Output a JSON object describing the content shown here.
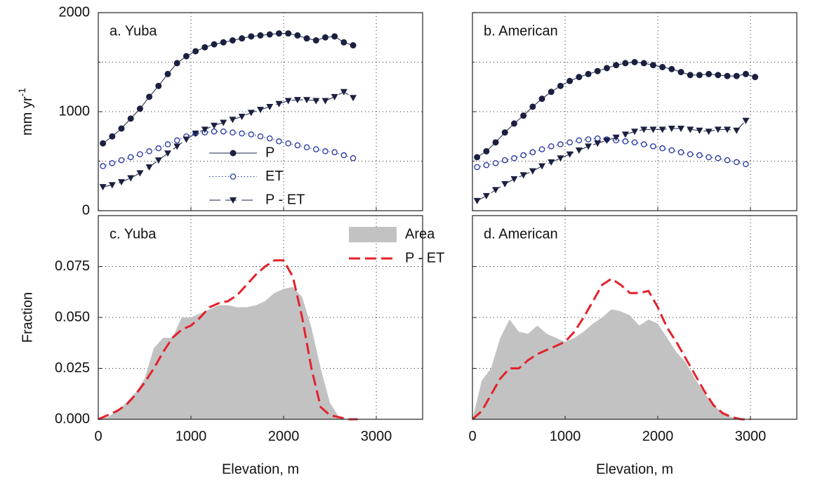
{
  "chart_data": [
    {
      "type": "line",
      "title": "a. Yuba",
      "ylabel": {
        "text": "mm yr",
        "superscript": "-1"
      },
      "x": [
        50,
        150,
        250,
        350,
        450,
        550,
        650,
        750,
        850,
        950,
        1050,
        1150,
        1250,
        1350,
        1450,
        1550,
        1650,
        1750,
        1850,
        1950,
        2050,
        2150,
        2250,
        2350,
        2450,
        2550,
        2650,
        2750
      ],
      "series": [
        {
          "name": "P",
          "color": "#1b2040",
          "dash": "solid",
          "marker": "filled-circle",
          "values": [
            680,
            750,
            830,
            930,
            1030,
            1150,
            1260,
            1380,
            1490,
            1560,
            1610,
            1650,
            1680,
            1700,
            1720,
            1740,
            1760,
            1770,
            1780,
            1790,
            1790,
            1770,
            1740,
            1720,
            1750,
            1760,
            1700,
            1670
          ]
        },
        {
          "name": "ET",
          "color": "#2233a0",
          "dash": "dotted",
          "marker": "open-circle",
          "values": [
            450,
            480,
            510,
            540,
            570,
            600,
            630,
            670,
            710,
            750,
            780,
            790,
            800,
            800,
            790,
            780,
            770,
            750,
            730,
            700,
            680,
            660,
            640,
            620,
            600,
            590,
            560,
            530
          ]
        },
        {
          "name": "P - ET",
          "color": "#1b2040",
          "dash": "dashed",
          "marker": "triangle-down",
          "values": [
            240,
            260,
            290,
            330,
            380,
            440,
            510,
            580,
            650,
            720,
            780,
            820,
            860,
            890,
            920,
            950,
            990,
            1020,
            1050,
            1080,
            1110,
            1120,
            1120,
            1110,
            1110,
            1150,
            1200,
            1140
          ]
        }
      ],
      "xlim": [
        0,
        3500
      ],
      "xticks": [
        0,
        1000,
        2000,
        3000
      ],
      "xtick_labels": false,
      "ylim": [
        0,
        2000
      ],
      "yticks": [
        0,
        1000,
        2000
      ],
      "minor_yticks": [
        500,
        1500
      ],
      "ytick_labels": true,
      "grid": true,
      "legend": "center"
    },
    {
      "type": "line",
      "title": "b. American",
      "x": [
        50,
        150,
        250,
        350,
        450,
        550,
        650,
        750,
        850,
        950,
        1050,
        1150,
        1250,
        1350,
        1450,
        1550,
        1650,
        1750,
        1850,
        1950,
        2050,
        2150,
        2250,
        2350,
        2450,
        2550,
        2650,
        2750,
        2850,
        2950,
        3050
      ],
      "series": [
        {
          "name": "P",
          "color": "#1b2040",
          "dash": "solid",
          "marker": "filled-circle",
          "values": [
            540,
            600,
            690,
            790,
            880,
            960,
            1050,
            1130,
            1200,
            1260,
            1310,
            1350,
            1380,
            1410,
            1440,
            1470,
            1490,
            1500,
            1490,
            1470,
            1450,
            1430,
            1400,
            1370,
            1370,
            1380,
            1370,
            1360,
            1360,
            1380,
            1350
          ]
        },
        {
          "name": "ET",
          "color": "#2233a0",
          "dash": "dotted",
          "marker": "open-circle",
          "values": [
            440,
            460,
            480,
            510,
            530,
            560,
            590,
            620,
            650,
            670,
            690,
            710,
            720,
            730,
            720,
            710,
            700,
            690,
            670,
            650,
            630,
            610,
            590,
            570,
            560,
            540,
            530,
            510,
            490,
            470,
            null
          ]
        },
        {
          "name": "P - ET",
          "color": "#1b2040",
          "dash": "dashed",
          "marker": "triangle-down",
          "values": [
            100,
            150,
            210,
            270,
            320,
            360,
            400,
            450,
            490,
            530,
            570,
            610,
            650,
            680,
            710,
            740,
            770,
            800,
            820,
            820,
            820,
            830,
            830,
            820,
            810,
            800,
            820,
            820,
            810,
            910,
            null
          ]
        }
      ],
      "xlim": [
        0,
        3500
      ],
      "xticks": [
        0,
        1000,
        2000,
        3000
      ],
      "xtick_labels": false,
      "ylim": [
        0,
        2000
      ],
      "yticks": [
        0,
        1000,
        2000
      ],
      "minor_yticks": [
        500,
        1500
      ],
      "ytick_labels": false,
      "grid": true
    },
    {
      "type": "line",
      "title": "c. Yuba",
      "xlabel": "Elevation, m",
      "ylabel": "Fraction",
      "x": [
        0,
        100,
        200,
        300,
        400,
        500,
        600,
        700,
        800,
        900,
        1000,
        1100,
        1200,
        1300,
        1400,
        1500,
        1600,
        1700,
        1800,
        1900,
        2000,
        2100,
        2200,
        2300,
        2400,
        2500,
        2600,
        2700,
        2800
      ],
      "series": [
        {
          "name": "Area",
          "color": "#c2c2c2",
          "kind": "area",
          "values": [
            0,
            0.001,
            0.004,
            0.008,
            0.013,
            0.02,
            0.035,
            0.04,
            0.04,
            0.05,
            0.05,
            0.052,
            0.054,
            0.056,
            0.056,
            0.055,
            0.055,
            0.056,
            0.058,
            0.062,
            0.064,
            0.065,
            0.06,
            0.045,
            0.025,
            0.008,
            0.001,
            0,
            0
          ]
        },
        {
          "name": "P - ET",
          "color": "#e3222b",
          "kind": "line",
          "dash": "dashed",
          "values": [
            0,
            0.002,
            0.004,
            0.007,
            0.012,
            0.018,
            0.025,
            0.033,
            0.04,
            0.044,
            0.046,
            0.05,
            0.055,
            0.057,
            0.058,
            0.061,
            0.066,
            0.071,
            0.075,
            0.078,
            0.078,
            0.07,
            0.05,
            0.025,
            0.006,
            0.002,
            0.001,
            0,
            0
          ]
        }
      ],
      "xlim": [
        0,
        3500
      ],
      "xticks": [
        0,
        1000,
        2000,
        3000
      ],
      "xtick_labels": true,
      "ylim": [
        0,
        0.1
      ],
      "yticks": [
        {
          "value": 0,
          "label": "0.000"
        },
        {
          "value": 0.025,
          "label": "0.025"
        },
        {
          "value": 0.05,
          "label": "0.050"
        },
        {
          "value": 0.075,
          "label": "0.075"
        }
      ],
      "ytick_labels": true,
      "grid": true,
      "legend": "upper right"
    },
    {
      "type": "line",
      "title": "d. American",
      "xlabel": "Elevation, m",
      "x": [
        0,
        100,
        200,
        300,
        400,
        500,
        600,
        700,
        800,
        900,
        1000,
        1100,
        1200,
        1300,
        1400,
        1500,
        1600,
        1700,
        1800,
        1900,
        2000,
        2100,
        2200,
        2300,
        2400,
        2500,
        2600,
        2700,
        2800,
        2900,
        3000
      ],
      "series": [
        {
          "name": "Area",
          "color": "#c2c2c2",
          "kind": "area",
          "values": [
            0,
            0.019,
            0.025,
            0.04,
            0.049,
            0.043,
            0.042,
            0.046,
            0.042,
            0.04,
            0.038,
            0.04,
            0.043,
            0.047,
            0.05,
            0.054,
            0.053,
            0.051,
            0.046,
            0.049,
            0.047,
            0.04,
            0.033,
            0.028,
            0.02,
            0.013,
            0.007,
            0.003,
            0.001,
            0,
            0
          ]
        },
        {
          "name": "P - ET",
          "color": "#e3222b",
          "kind": "line",
          "dash": "dashed",
          "values": [
            0,
            0.004,
            0.012,
            0.02,
            0.025,
            0.025,
            0.029,
            0.032,
            0.034,
            0.036,
            0.038,
            0.043,
            0.05,
            0.058,
            0.066,
            0.069,
            0.066,
            0.062,
            0.062,
            0.063,
            0.055,
            0.045,
            0.038,
            0.03,
            0.022,
            0.014,
            0.007,
            0.003,
            0.001,
            0,
            0
          ]
        }
      ],
      "xlim": [
        0,
        3500
      ],
      "xticks": [
        0,
        1000,
        2000,
        3000
      ],
      "xtick_labels": true,
      "ylim": [
        0,
        0.1
      ],
      "yticks": [
        0,
        0.025,
        0.05,
        0.075
      ],
      "ytick_labels": false,
      "grid": true
    }
  ]
}
